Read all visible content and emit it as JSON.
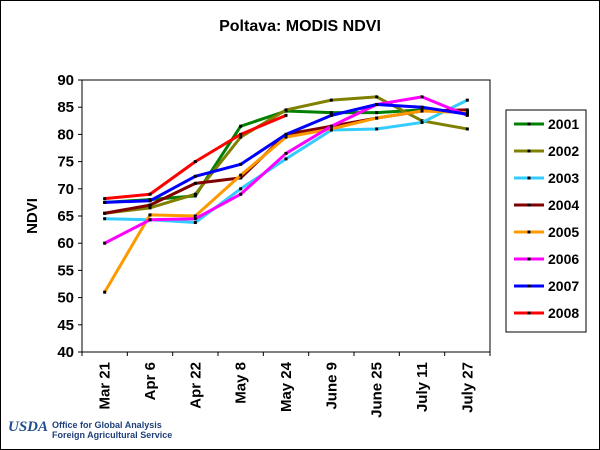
{
  "title": "Poltava:  MODIS NDVI",
  "footer": {
    "logo_text": "USDA",
    "line1": "Office for Global Analysis",
    "line2": "Foreign Agricultural Service"
  },
  "chart_data": {
    "type": "line",
    "title": "Poltava:  MODIS NDVI",
    "ylabel": "NDVI",
    "xlabel": "",
    "ylim": [
      40,
      90
    ],
    "yticks": [
      40,
      45,
      50,
      55,
      60,
      65,
      70,
      75,
      80,
      85,
      90
    ],
    "categories": [
      "Mar 21",
      "Apr 6",
      "Apr 22",
      "May 8",
      "May 24",
      "June 9",
      "June 25",
      "July 11",
      "July 27"
    ],
    "grid": false,
    "legend_position": "right",
    "series": [
      {
        "name": "2001",
        "color": "#008000",
        "values": [
          67.5,
          68.0,
          68.7,
          81.5,
          84.3,
          84.0,
          84.0,
          84.5,
          84.2
        ]
      },
      {
        "name": "2002",
        "color": "#808000",
        "values": [
          65.5,
          66.5,
          69.0,
          79.5,
          84.5,
          86.3,
          86.9,
          82.5,
          81.0
        ]
      },
      {
        "name": "2003",
        "color": "#33CCFF",
        "values": [
          64.5,
          64.3,
          63.8,
          70.0,
          75.5,
          80.8,
          81.0,
          82.2,
          86.3
        ]
      },
      {
        "name": "2004",
        "color": "#800000",
        "values": [
          65.5,
          67.0,
          71.0,
          72.0,
          80.0,
          81.5,
          83.0,
          84.3,
          84.5
        ]
      },
      {
        "name": "2005",
        "color": "#FF9900",
        "values": [
          51.0,
          65.2,
          65.0,
          72.5,
          79.5,
          81.0,
          83.0,
          84.3,
          84.0
        ]
      },
      {
        "name": "2006",
        "color": "#FF00FF",
        "values": [
          60.0,
          64.3,
          64.5,
          69.0,
          76.5,
          81.5,
          85.5,
          86.9,
          83.5
        ]
      },
      {
        "name": "2007",
        "color": "#0000FF",
        "values": [
          67.5,
          67.8,
          72.3,
          74.5,
          80.0,
          83.5,
          85.5,
          85.0,
          83.7
        ]
      },
      {
        "name": "2008",
        "color": "#FF0000",
        "values": [
          68.2,
          69.0,
          75.0,
          80.0,
          83.5,
          null,
          null,
          null,
          null
        ]
      }
    ]
  }
}
